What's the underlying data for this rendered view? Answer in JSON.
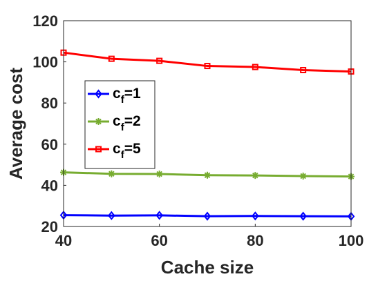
{
  "chart_data": {
    "type": "line",
    "xlabel": "Cache size",
    "ylabel": "Average cost",
    "x": [
      40,
      50,
      60,
      70,
      80,
      90,
      100
    ],
    "xlim": [
      40,
      100
    ],
    "ylim": [
      20,
      120
    ],
    "xticks": [
      40,
      60,
      80,
      100
    ],
    "yticks": [
      20,
      40,
      60,
      80,
      100,
      120
    ],
    "grid": false,
    "legend_position": "left-middle",
    "series": [
      {
        "key": "cf1",
        "name_main": "c",
        "name_sub": "f",
        "name_tail": "=1",
        "color": "#0000ff",
        "marker": "diamond",
        "values": [
          25.5,
          25.3,
          25.4,
          25.0,
          25.1,
          25.0,
          24.9
        ]
      },
      {
        "key": "cf2",
        "name_main": "c",
        "name_sub": "f",
        "name_tail": "=2",
        "color": "#77ac30",
        "marker": "star",
        "values": [
          46.3,
          45.6,
          45.5,
          44.9,
          44.8,
          44.5,
          44.3
        ]
      },
      {
        "key": "cf5",
        "name_main": "c",
        "name_sub": "f",
        "name_tail": "=5",
        "color": "#ff0000",
        "marker": "square",
        "values": [
          104.5,
          101.5,
          100.5,
          98.0,
          97.5,
          96.0,
          95.3
        ]
      }
    ]
  }
}
